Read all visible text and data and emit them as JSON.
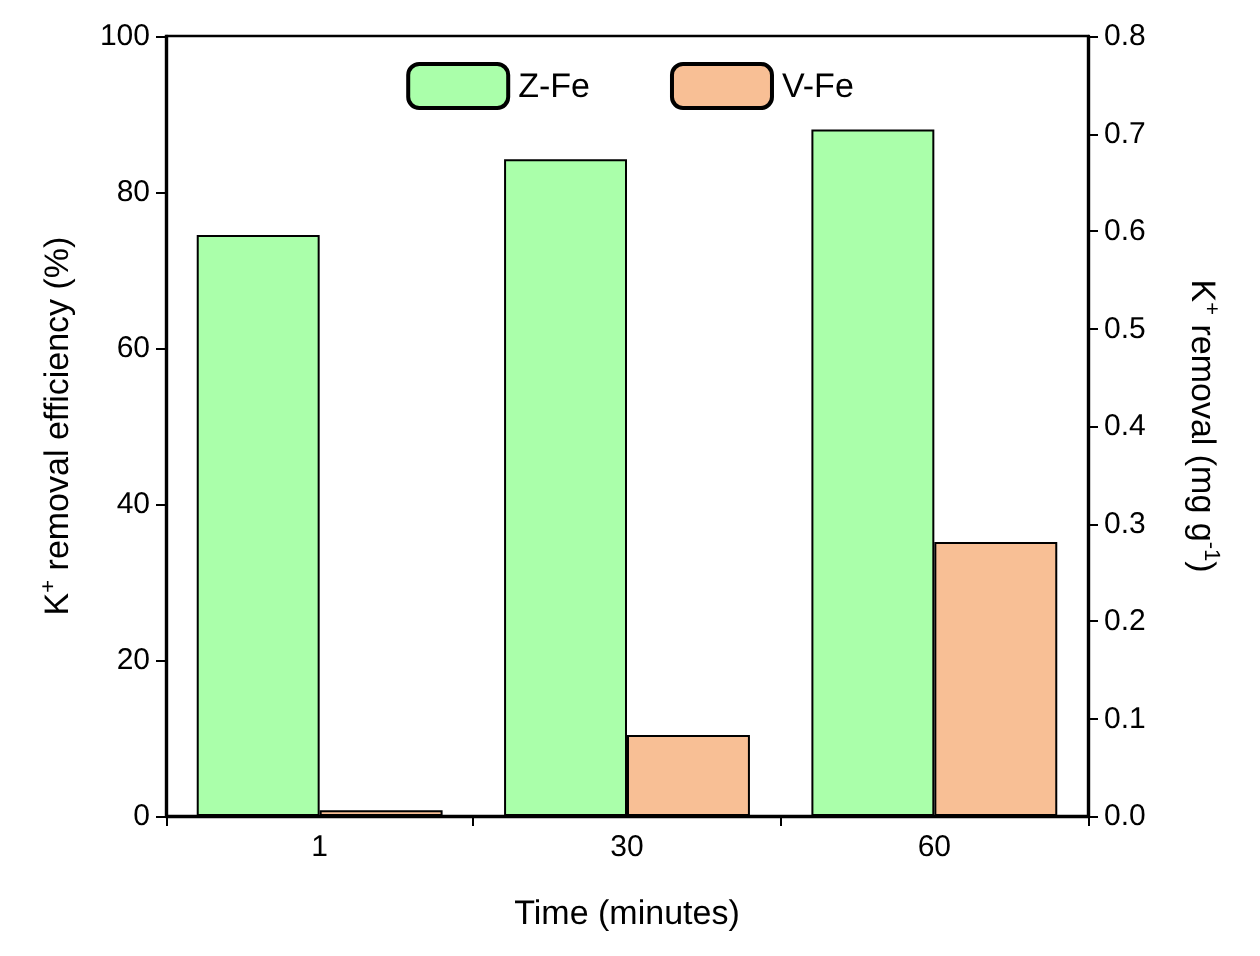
{
  "chart_data": {
    "type": "bar",
    "xlabel": "Time (minutes)",
    "ylabel": "K$^{+}$ removal efficiency (%)",
    "y2label": "K$^{+}$ removal (mg g$^{-1}$)",
    "categories": [
      "1",
      "30",
      "60"
    ],
    "series": [
      {
        "name": "Z-Fe",
        "color": "#aaffaa",
        "values": [
          74.5,
          84.2,
          88.0
        ]
      },
      {
        "name": "V-Fe",
        "color": "#f8bf95",
        "axis": "y2",
        "values": [
          0.006,
          0.083,
          0.281
        ]
      }
    ],
    "ylim": [
      0,
      100
    ],
    "yticks": [
      0,
      20,
      40,
      60,
      80,
      100
    ],
    "y2lim": [
      0,
      0.8
    ],
    "y2ticks": [
      {
        "value": 0,
        "label": "0.0"
      },
      {
        "value": 0.1,
        "label": "0.1"
      },
      {
        "value": 0.2,
        "label": "0.2"
      },
      {
        "value": 0.3,
        "label": "0.3"
      },
      {
        "value": 0.4,
        "label": "0.4"
      },
      {
        "value": 0.5,
        "label": "0.5"
      },
      {
        "value": 0.6,
        "label": "0.6"
      },
      {
        "value": 0.7,
        "label": "0.7"
      },
      {
        "value": 0.8,
        "label": "0.8"
      }
    ],
    "grid": false,
    "legend": "top"
  }
}
